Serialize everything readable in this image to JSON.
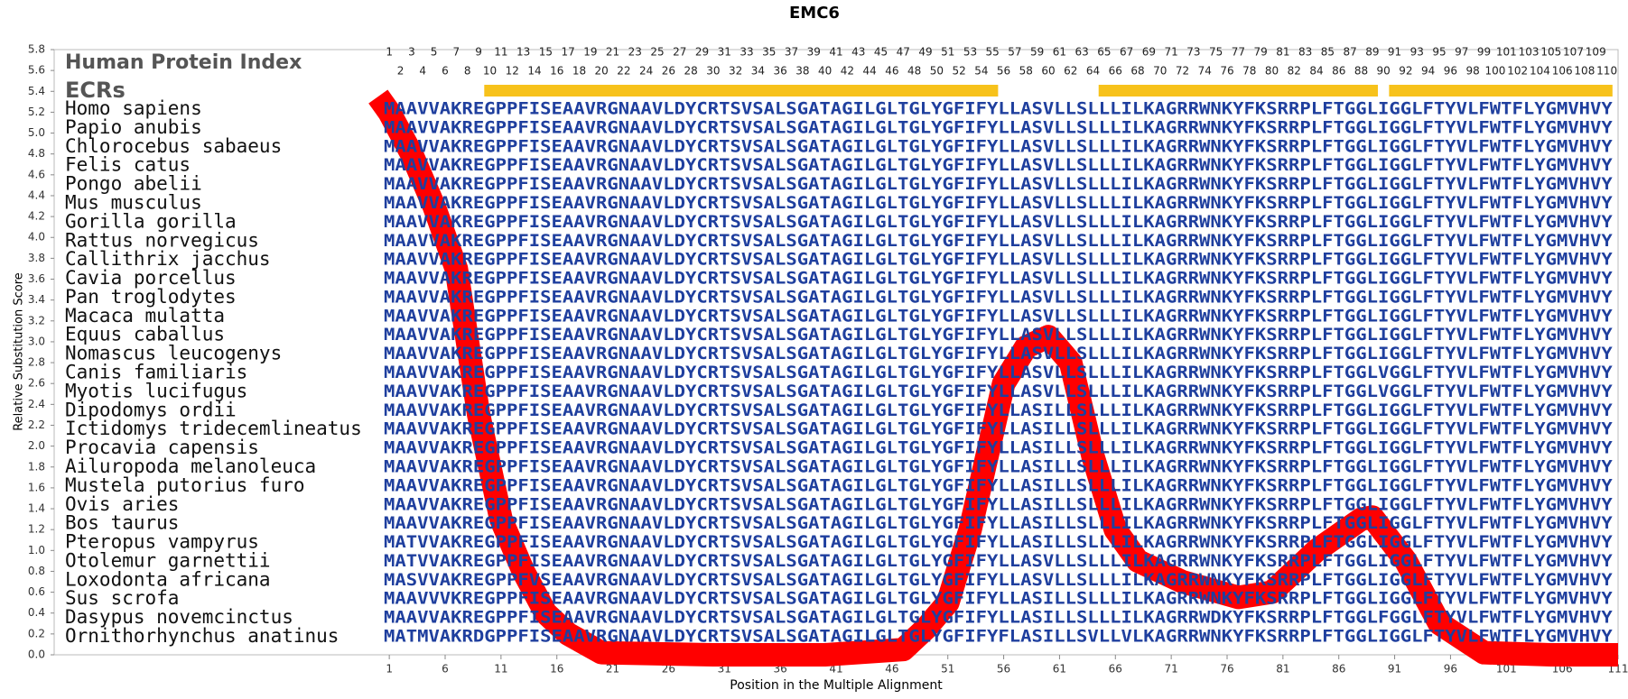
{
  "chart_data": {
    "type": "line",
    "title": "EMC6",
    "y_label": "Relative Substitution Score",
    "x_label": "Position in the Multiple Alignment",
    "color": "#ff0000",
    "xlim": [
      -29,
      111
    ],
    "ylim": [
      0,
      5.8
    ],
    "xticks": [
      1,
      6,
      11,
      16,
      21,
      26,
      31,
      36,
      41,
      46,
      51,
      56,
      61,
      66,
      71,
      76,
      81,
      86,
      91,
      96,
      101,
      106,
      111
    ],
    "yticks": [
      {
        "value": 0,
        "label": "0.0"
      },
      0.2,
      0.4,
      0.6,
      0.8,
      {
        "value": 1,
        "label": "1.0"
      },
      1.2,
      1.4,
      1.6,
      1.8,
      {
        "value": 2,
        "label": "2.0"
      },
      2.2,
      2.4,
      2.6,
      2.8,
      {
        "value": 3,
        "label": "3.0"
      },
      3.2,
      3.4,
      3.6,
      3.8,
      {
        "value": 4,
        "label": "4.0"
      },
      4.2,
      4.4,
      4.6,
      4.8,
      {
        "value": 5,
        "label": "5.0"
      },
      5.2,
      5.4,
      5.6,
      5.8
    ],
    "x": [
      0,
      1,
      3,
      5,
      7,
      8,
      9,
      11,
      13,
      15,
      17,
      20,
      30,
      40,
      47,
      49,
      51,
      53,
      56,
      58,
      60,
      62,
      64,
      66,
      68,
      72,
      77,
      80,
      84,
      88,
      89,
      92,
      95,
      99,
      105,
      111
    ],
    "values": [
      5.35,
      5.2,
      4.8,
      4.3,
      3.7,
      3.0,
      2.3,
      1.3,
      0.8,
      0.4,
      0.2,
      0.02,
      0,
      0,
      0.05,
      0.25,
      0.5,
      1.2,
      2.6,
      2.95,
      3.05,
      2.8,
      1.9,
      1.2,
      0.9,
      0.7,
      0.55,
      0.6,
      1.0,
      1.3,
      1.32,
      0.9,
      0.3,
      0.02,
      0,
      0
    ],
    "index_header": "Human Protein Index",
    "ecr_header": "ECRs",
    "ecr_color": "#f7c21b",
    "protein_index": [
      1,
      2,
      3,
      4,
      5,
      6,
      7,
      8,
      9,
      10,
      11,
      12,
      13,
      14,
      15,
      16,
      17,
      18,
      19,
      20,
      21,
      22,
      23,
      24,
      25,
      26,
      27,
      28,
      29,
      30,
      31,
      32,
      33,
      34,
      35,
      36,
      37,
      38,
      39,
      40,
      41,
      42,
      43,
      44,
      45,
      46,
      47,
      48,
      49,
      50,
      51,
      52,
      53,
      54,
      55,
      56,
      57,
      58,
      59,
      60,
      61,
      62,
      63,
      64,
      65,
      66,
      67,
      68,
      69,
      70,
      71,
      72,
      73,
      74,
      75,
      76,
      77,
      78,
      79,
      80,
      81,
      82,
      83,
      84,
      85,
      86,
      87,
      88,
      89,
      90,
      91,
      92,
      93,
      94,
      95,
      96,
      97,
      98,
      99,
      100,
      101,
      102,
      103,
      104,
      105,
      106,
      107,
      108,
      109,
      110
    ],
    "ecrs": [
      [
        10,
        55
      ],
      [
        65,
        89
      ],
      [
        91,
        110
      ]
    ],
    "rows": [
      {
        "species": "Homo sapiens",
        "sequence": "MAAVVAKREGPPFISEAAVRGNAAVLDYCRTSVSALSGATAGILGLTGLYGFIFYLLASVLLSLLLILKAGRRWNKYFKSRRPLFTGGLIGGLFTYVLFWTFLYGMVHVY"
      },
      {
        "species": "Papio anubis",
        "sequence": "MAAVVAKREGPPFISEAAVRGNAAVLDYCRTSVSALSGATAGILGLTGLYGFIFYLLASVLLSLLLILKAGRRWNKYFKSRRPLFTGGLIGGLFTYVLFWTFLYGMVHVY"
      },
      {
        "species": "Chlorocebus sabaeus",
        "sequence": "MAAVVAKREGPPFISEAAVRGNAAVLDYCRTSVSALSGATAGILGLTGLYGFIFYLLASVLLSLLLILKAGRRWNKYFKSRRPLFTGGLIGGLFTYVLFWTFLYGMVHVY"
      },
      {
        "species": "Felis catus",
        "sequence": "MAAVVAKREGPPFISEAAVRGNAAVLDYCRTSVSALSGATAGILGLTGLYGFIFYLLASVLLSLLLILKAGRRWNKYFKSRRPLFTGGLIGGLFTYVLFWTFLYGMVHVY"
      },
      {
        "species": "Pongo abelii",
        "sequence": "MAAVVAKREGPPFISEAAVRGNAAVLDYCRTSVSALSGATAGILGLTGLYGFIFYLLASVLLSLLLILKAGRRWNKYFKSRRPLFTGGLIGGLFTYVLFWTFLYGMVHVY"
      },
      {
        "species": "Mus musculus",
        "sequence": "MAAVVAKREGPPFISEAAVRGNAAVLDYCRTSVSALSGATAGILGLTGLYGFIFYLLASVLLSLLLILKAGRRWNKYFKSRRPLFTGGLIGGLFTYVLFWTFLYGMVHVY"
      },
      {
        "species": "Gorilla gorilla",
        "sequence": "MAAVVAKREGPPFISEAAVRGNAAVLDYCRTSVSALSGATAGILGLTGLYGFIFYLLASVLLSLLLILKAGRRWNKYFKSRRPLFTGGLIGGLFTYVLFWTFLYGMVHVY"
      },
      {
        "species": "Rattus norvegicus",
        "sequence": "MAAVVAKREGPPFISEAAVRGNAAVLDYCRTSVSALSGATAGILGLTGLYGFIFYLLASVLLSLLLILKAGRRWNKYFKSRRPLFTGGLIGGLFTYVLFWTFLYGMVHVY"
      },
      {
        "species": "Callithrix jacchus",
        "sequence": "MAAVVAKREGPPFISEAAVRGNAAVLDYCRTSVSALSGATAGILGLTGLYGFIFYLLASVLLSLLLILKAGRRWNKYFKSRRPLFTGGLIGGLFTYVLFWTFLYGMVHVY"
      },
      {
        "species": "Cavia porcellus",
        "sequence": "MAAVVAKREGPPFISEAAVRGNAAVLDYCRTSVSALSGATAGILGLTGLYGFIFYLLASVLLSLLLILKAGRRWNKYFKSRRPLFTGGLIGGLFTYVLFWTFLYGMVHVY"
      },
      {
        "species": "Pan troglodytes",
        "sequence": "MAAVVAKREGPPFISEAAVRGNAAVLDYCRTSVSALSGATAGILGLTGLYGFIFYLLASVLLSLLLILKAGRRWNKYFKSRRPLFTGGLIGGLFTYVLFWTFLYGMVHVY"
      },
      {
        "species": "Macaca mulatta",
        "sequence": "MAAVVAKREGPPFISEAAVRGNAAVLDYCRTSVSALSGATAGILGLTGLYGFIFYLLASVLLSLLLILKAGRRWNKYFKSRRPLFTGGLIGGLFTYVLFWTFLYGMVHVY"
      },
      {
        "species": "Equus caballus",
        "sequence": "MAAVVAKREGPPFISEAAVRGNAAVLDYCRTSVSALSGATAGILGLTGLYGFIFYLLASVLLSLLLILKAGRRWNKYFKSRRPLFTGGLIGGLFTYVLFWTFLYGMVHVY"
      },
      {
        "species": "Nomascus leucogenys",
        "sequence": "MAAVVAKREGPPFISEAAVRGNAAVLDYCRTSVSALSGATAGILGLTGLYGFIFYLLASVLLSLLLILKAGRRWNKYFKSRRPLFTGGLIGGLFTYVLFWTFLYGMVHVY"
      },
      {
        "species": "Canis familiaris",
        "sequence": "MAAVVAKREGPPFISEAAVRGNAAVLDYCRTSVSALSGATAGILGLTGLYGFIFYLLASVLLSLLLILKAGRRWNKYFKSRRPLFTGGLVGGLFTYVLFWTFLYGMVHVY"
      },
      {
        "species": "Myotis lucifugus",
        "sequence": "MAAVVAKREGPPFISEAAVRGNAAVLDYCRTSVSALSGATAGILGLTGLYGFIFYLLASVLLSLLLILKAGRRWNKYFKSRRPLFTGGLVGGLFTYVLFWTFLYGMVHVY"
      },
      {
        "species": "Dipodomys ordii",
        "sequence": "MAAVVAKREGPPFISEAAVRGNAAVLDYCRTSVSALSGATAGILGLTGLYGFIFYLLASILLSLLLILKAGRRWNKYFKSRRPLFTGGLIGGLFTYVLFWTFLYGMVHVY"
      },
      {
        "species": "Ictidomys tridecemlineatus",
        "sequence": "MAAVVAKREGPPFISEAAVRGNAAVLDYCRTSVSALSGATAGILGLTGLYGFIFYLLASILLSLLLILKAGRRWNKYFKSRRPLFTGGLIGGLFTYVLFWTFLYGMVHVY"
      },
      {
        "species": "Procavia capensis",
        "sequence": "MAAVVAKREGPPFISEAAVRGNAAVLDYCRTSVSALSGATAGILGLTGLYGFIFYLLASILLSLLLILKAGRRWNKYFKSRRPLFTGGLIGGLFTYVLFWTFLYGMVHVY"
      },
      {
        "species": "Ailuropoda melanoleuca",
        "sequence": "MAAVVAKREGPPFISEAAVRGNAAVLDYCRTSVSALSGATAGILGLTGLYGFIFYLLASILLSLLLILKAGRRWNKYFKSRRPLFTGGLIGGLFTYVLFWTFLYGMVHVY"
      },
      {
        "species": "Mustela putorius furo",
        "sequence": "MAAVVAKREGPPFISEAAVRGNAAVLDYCRTSVSALSGATAGILGLTGLYGFIFYLLASILLSLLLILKAGRRWNKYFKSRRPLFTGGLIGGLFTYVLFWTFLYGMVHVY"
      },
      {
        "species": "Ovis aries",
        "sequence": "MAAVVAKREGPPFISEAAVRGNAAVLDYCRTSVSALSGATAGILGLTGLYGFIFYLLASILLSLLLILKAGRRWNKYFKSRRPLFTGGLIGGLFTYVLFWTFLYGMVHVY"
      },
      {
        "species": "Bos taurus",
        "sequence": "MAAVVAKREGPPFISEAAVRGNAAVLDYCRTSVSALSGATAGILGLTGLYGFIFYLLASILLSLLLILKAGRRWNKYFKSRRPLFTGGLIGGLFTYVLFWTFLYGMVHVY"
      },
      {
        "species": "Pteropus vampyrus",
        "sequence": "MATVVAKREGPPFISEAAVRGNAAVLDYCRTSVSALSGATAGILGLTGLYGFIFYLLASILLSLLLILKAGRRWNKYFKSRRPLFTGGLIGGLFTYVLFWTFLYGMVHVY"
      },
      {
        "species": "Otolemur garnettii",
        "sequence": "MATVVAKREGPPFISEAAVRGNAAVLDYCRTSVSALSGATAGILGLTGLYGFIFYLLASVLLSLLLILKAGRRWNKYFKSRRPLFTGGLIGGLFTYVLFWTFLYGMVHVY"
      },
      {
        "species": "Loxodonta africana",
        "sequence": "MASVVAKREGPPFVSEAAVRGNAAVLDYCRTSVSALSGATAGILGLTGLYGFIFYLLASVLLSLLLILKAGRRWNKYFKSRRPLFTGGLIGGLFTYVLFWTFLYGMVHVY"
      },
      {
        "species": "Sus scrofa",
        "sequence": "MAAVVVKREGPPFISEAAVRGNAAVLDYCRTSVSALSGATAGILGLTGLYGFIFYLLASILLSLLLILKAGRRWNKYFKSRRPLFTGGLIGGLFTYVLFWTFLYGMVHVY"
      },
      {
        "species": "Dasypus novemcinctus",
        "sequence": "MAAVVAKREGPPFISEAAVRGNAAVLDYCRTSVSALSGATAGILGLTGLYGFIFYLLASILLSLLLILKAGRRWDKYFKSRRPLFTGGLFGGLFTYVLFWTFLYGMVHVY"
      },
      {
        "species": "Ornithorhynchus anatinus",
        "sequence": "MATMVAKRDGPPFISEAAVRGNAAVLDYCRTSVSALSGATAGILGLTGLYGFIFYFLASILLSVLLVLKAGRRWNKYFKSRRPLFTGGLIGGLFTYVLFWTFLYGMVHVY"
      }
    ]
  }
}
